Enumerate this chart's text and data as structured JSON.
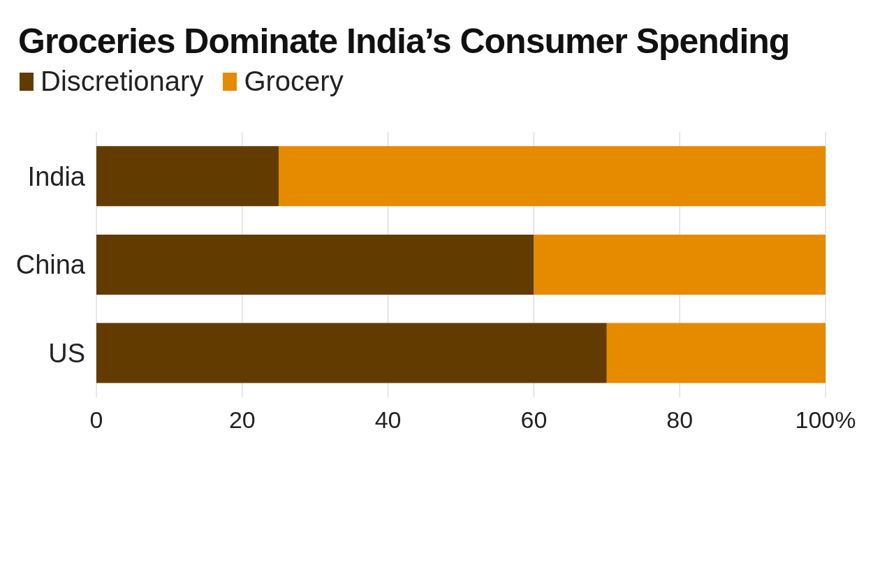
{
  "chart_data": {
    "type": "bar",
    "orientation": "horizontal",
    "stacked": true,
    "title": "Groceries Dominate India’s Consumer Spending",
    "categories": [
      "India",
      "China",
      "US"
    ],
    "series": [
      {
        "name": "Discretionary",
        "color": "#623b00",
        "values": [
          25,
          60,
          70
        ]
      },
      {
        "name": "Grocery",
        "color": "#e68a00",
        "values": [
          75,
          40,
          30
        ]
      }
    ],
    "xlim": [
      0,
      100
    ],
    "xticks": [
      0,
      20,
      40,
      60,
      80,
      {
        "value": 100,
        "label": "100%"
      }
    ],
    "grid": "x",
    "legend": "top left"
  }
}
